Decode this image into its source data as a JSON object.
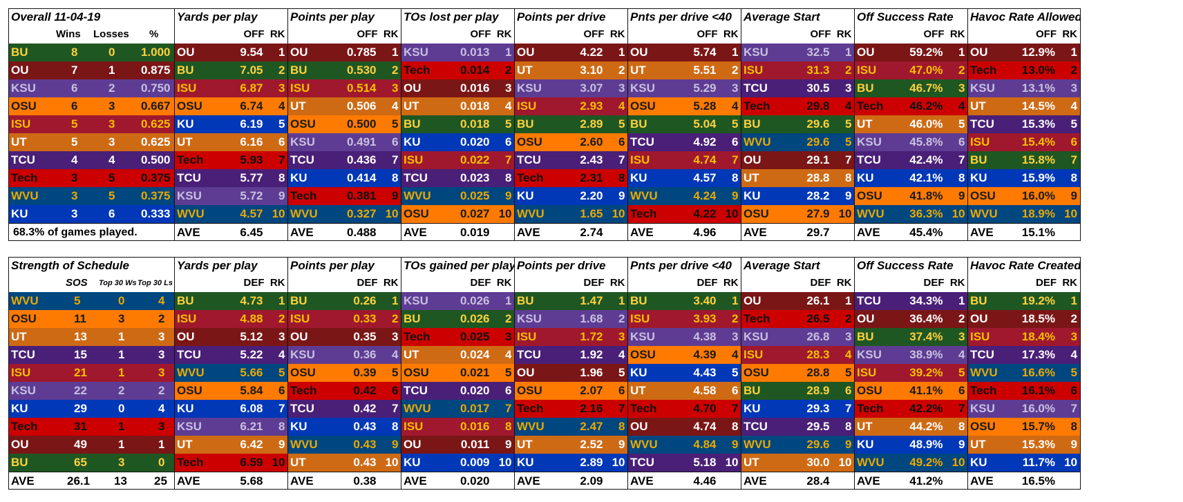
{
  "team_colors": {
    "BU": {
      "bg": "#1f5722",
      "fg": "#ffd23f"
    },
    "OU": {
      "bg": "#7b1616",
      "fg": "#ffffff"
    },
    "KSU": {
      "bg": "#5e3c93",
      "fg": "#c8c0e0"
    },
    "OSU": {
      "bg": "#ff7a00",
      "fg": "#1a1a1a"
    },
    "ISU": {
      "bg": "#a0182e",
      "fg": "#f5c000"
    },
    "UT": {
      "bg": "#cf6a14",
      "fg": "#ffffff"
    },
    "TCU": {
      "bg": "#4a1f78",
      "fg": "#ffffff"
    },
    "Tech": {
      "bg": "#cc0000",
      "fg": "#111111"
    },
    "WVU": {
      "bg": "#00467f",
      "fg": "#eaaa00"
    },
    "KU": {
      "bg": "#0038b8",
      "fg": "#ffffff"
    }
  },
  "top": {
    "standings": {
      "title": "Overall 11-04-19",
      "headers": [
        "Wins",
        "Losses",
        "%"
      ],
      "rows": [
        [
          "BU",
          "8",
          "0",
          "1.000"
        ],
        [
          "OU",
          "7",
          "1",
          "0.875"
        ],
        [
          "KSU",
          "6",
          "2",
          "0.750"
        ],
        [
          "OSU",
          "6",
          "3",
          "0.667"
        ],
        [
          "ISU",
          "5",
          "3",
          "0.625"
        ],
        [
          "UT",
          "5",
          "3",
          "0.625"
        ],
        [
          "TCU",
          "4",
          "4",
          "0.500"
        ],
        [
          "Tech",
          "3",
          "5",
          "0.375"
        ],
        [
          "WVU",
          "3",
          "5",
          "0.375"
        ],
        [
          "KU",
          "3",
          "6",
          "0.333"
        ]
      ],
      "footer_note": "68.3%  of games played."
    },
    "stats": [
      {
        "title": "Yards per play",
        "col": "OFF",
        "rk": "RK",
        "rows": [
          [
            "OU",
            "9.54",
            "1"
          ],
          [
            "BU",
            "7.05",
            "2"
          ],
          [
            "ISU",
            "6.87",
            "3"
          ],
          [
            "OSU",
            "6.74",
            "4"
          ],
          [
            "KU",
            "6.19",
            "5"
          ],
          [
            "UT",
            "6.16",
            "6"
          ],
          [
            "Tech",
            "5.93",
            "7"
          ],
          [
            "TCU",
            "5.77",
            "8"
          ],
          [
            "KSU",
            "5.72",
            "9"
          ],
          [
            "WVU",
            "4.57",
            "10"
          ]
        ],
        "ave": "6.45"
      },
      {
        "title": "Points per play",
        "col": "OFF",
        "rk": "RK",
        "rows": [
          [
            "OU",
            "0.785",
            "1"
          ],
          [
            "BU",
            "0.530",
            "2"
          ],
          [
            "ISU",
            "0.514",
            "3"
          ],
          [
            "UT",
            "0.506",
            "4"
          ],
          [
            "OSU",
            "0.500",
            "5"
          ],
          [
            "KSU",
            "0.491",
            "6"
          ],
          [
            "TCU",
            "0.436",
            "7"
          ],
          [
            "KU",
            "0.414",
            "8"
          ],
          [
            "Tech",
            "0.381",
            "9"
          ],
          [
            "WVU",
            "0.327",
            "10"
          ]
        ],
        "ave": "0.488"
      },
      {
        "title": "TOs lost per play",
        "col": "OFF",
        "rk": "RK",
        "rows": [
          [
            "KSU",
            "0.013",
            "1"
          ],
          [
            "Tech",
            "0.014",
            "2"
          ],
          [
            "OU",
            "0.016",
            "3"
          ],
          [
            "UT",
            "0.018",
            "4"
          ],
          [
            "BU",
            "0.018",
            "5"
          ],
          [
            "KU",
            "0.020",
            "6"
          ],
          [
            "ISU",
            "0.022",
            "7"
          ],
          [
            "TCU",
            "0.023",
            "8"
          ],
          [
            "WVU",
            "0.025",
            "9"
          ],
          [
            "OSU",
            "0.027",
            "10"
          ]
        ],
        "ave": "0.019"
      },
      {
        "title": "Points per drive",
        "col": "OFF",
        "rk": "RK",
        "rows": [
          [
            "OU",
            "4.22",
            "1"
          ],
          [
            "UT",
            "3.10",
            "2"
          ],
          [
            "KSU",
            "3.07",
            "3"
          ],
          [
            "ISU",
            "2.93",
            "4"
          ],
          [
            "BU",
            "2.89",
            "5"
          ],
          [
            "OSU",
            "2.60",
            "6"
          ],
          [
            "TCU",
            "2.43",
            "7"
          ],
          [
            "Tech",
            "2.31",
            "8"
          ],
          [
            "KU",
            "2.20",
            "9"
          ],
          [
            "WVU",
            "1.65",
            "10"
          ]
        ],
        "ave": "2.74"
      },
      {
        "title": "Pnts per drive <40",
        "col": "OFF",
        "rk": "RK",
        "rows": [
          [
            "OU",
            "5.74",
            "1"
          ],
          [
            "UT",
            "5.51",
            "2"
          ],
          [
            "KSU",
            "5.29",
            "3"
          ],
          [
            "OSU",
            "5.28",
            "4"
          ],
          [
            "BU",
            "5.04",
            "5"
          ],
          [
            "TCU",
            "4.92",
            "6"
          ],
          [
            "ISU",
            "4.74",
            "7"
          ],
          [
            "KU",
            "4.57",
            "8"
          ],
          [
            "WVU",
            "4.24",
            "9"
          ],
          [
            "Tech",
            "4.22",
            "10"
          ]
        ],
        "ave": "4.96"
      },
      {
        "title": "Average Start",
        "col": "OFF",
        "rk": "RK",
        "rows": [
          [
            "KSU",
            "32.5",
            "1"
          ],
          [
            "ISU",
            "31.3",
            "2"
          ],
          [
            "TCU",
            "30.5",
            "3"
          ],
          [
            "Tech",
            "29.8",
            "4"
          ],
          [
            "BU",
            "29.6",
            "5"
          ],
          [
            "WVU",
            "29.6",
            "5"
          ],
          [
            "OU",
            "29.1",
            "7"
          ],
          [
            "UT",
            "28.8",
            "8"
          ],
          [
            "KU",
            "28.2",
            "9"
          ],
          [
            "OSU",
            "27.9",
            "10"
          ]
        ],
        "ave": "29.7"
      },
      {
        "title": "Off Success Rate",
        "col": "OFF",
        "rk": "RK",
        "rows": [
          [
            "OU",
            "59.2%",
            "1"
          ],
          [
            "ISU",
            "47.0%",
            "2"
          ],
          [
            "BU",
            "46.7%",
            "3"
          ],
          [
            "Tech",
            "46.2%",
            "4"
          ],
          [
            "UT",
            "46.0%",
            "5"
          ],
          [
            "KSU",
            "45.8%",
            "6"
          ],
          [
            "TCU",
            "42.4%",
            "7"
          ],
          [
            "KU",
            "42.1%",
            "8"
          ],
          [
            "OSU",
            "41.8%",
            "9"
          ],
          [
            "WVU",
            "36.3%",
            "10"
          ]
        ],
        "ave": "45.4%"
      },
      {
        "title": "Havoc Rate Allowed",
        "col": "OFF",
        "rk": "RK",
        "rows": [
          [
            "OU",
            "12.9%",
            "1"
          ],
          [
            "Tech",
            "13.0%",
            "2"
          ],
          [
            "KSU",
            "13.1%",
            "3"
          ],
          [
            "UT",
            "14.5%",
            "4"
          ],
          [
            "TCU",
            "15.3%",
            "5"
          ],
          [
            "ISU",
            "15.4%",
            "6"
          ],
          [
            "BU",
            "15.8%",
            "7"
          ],
          [
            "KU",
            "15.9%",
            "8"
          ],
          [
            "OSU",
            "16.0%",
            "9"
          ],
          [
            "WVU",
            "18.9%",
            "10"
          ]
        ],
        "ave": "15.1%"
      }
    ]
  },
  "bottom": {
    "sos": {
      "title": "Strength of Schedule",
      "headers": [
        "SOS",
        "Top 30 Ws",
        "Top 30 Ls"
      ],
      "rows": [
        [
          "WVU",
          "5",
          "0",
          "4"
        ],
        [
          "OSU",
          "11",
          "3",
          "2"
        ],
        [
          "UT",
          "13",
          "1",
          "3"
        ],
        [
          "TCU",
          "15",
          "1",
          "3"
        ],
        [
          "ISU",
          "21",
          "1",
          "3"
        ],
        [
          "KSU",
          "22",
          "2",
          "2"
        ],
        [
          "KU",
          "29",
          "0",
          "4"
        ],
        [
          "Tech",
          "31",
          "1",
          "3"
        ],
        [
          "OU",
          "49",
          "1",
          "1"
        ],
        [
          "BU",
          "65",
          "3",
          "0"
        ]
      ],
      "footer": [
        "AVE",
        "26.1",
        "13",
        "25"
      ]
    },
    "stats": [
      {
        "title": "Yards per play",
        "col": "DEF",
        "rk": "RK",
        "rows": [
          [
            "BU",
            "4.73",
            "1"
          ],
          [
            "ISU",
            "4.88",
            "2"
          ],
          [
            "OU",
            "5.12",
            "3"
          ],
          [
            "TCU",
            "5.22",
            "4"
          ],
          [
            "WVU",
            "5.66",
            "5"
          ],
          [
            "OSU",
            "5.84",
            "6"
          ],
          [
            "KU",
            "6.08",
            "7"
          ],
          [
            "KSU",
            "6.21",
            "8"
          ],
          [
            "UT",
            "6.42",
            "9"
          ],
          [
            "Tech",
            "6.59",
            "10"
          ]
        ],
        "ave": "5.68"
      },
      {
        "title": "Points per play",
        "col": "DEF",
        "rk": "RK",
        "rows": [
          [
            "BU",
            "0.26",
            "1"
          ],
          [
            "ISU",
            "0.33",
            "2"
          ],
          [
            "OU",
            "0.35",
            "3"
          ],
          [
            "KSU",
            "0.36",
            "4"
          ],
          [
            "OSU",
            "0.39",
            "5"
          ],
          [
            "Tech",
            "0.42",
            "6"
          ],
          [
            "TCU",
            "0.42",
            "7"
          ],
          [
            "KU",
            "0.43",
            "8"
          ],
          [
            "WVU",
            "0.43",
            "9"
          ],
          [
            "UT",
            "0.43",
            "10"
          ]
        ],
        "ave": "0.38"
      },
      {
        "title": "TOs gained per play",
        "col": "DEF",
        "rk": "RK",
        "rows": [
          [
            "KSU",
            "0.026",
            "1"
          ],
          [
            "BU",
            "0.026",
            "2"
          ],
          [
            "Tech",
            "0.025",
            "3"
          ],
          [
            "UT",
            "0.024",
            "4"
          ],
          [
            "OSU",
            "0.021",
            "5"
          ],
          [
            "TCU",
            "0.020",
            "6"
          ],
          [
            "WVU",
            "0.017",
            "7"
          ],
          [
            "ISU",
            "0.016",
            "8"
          ],
          [
            "OU",
            "0.011",
            "9"
          ],
          [
            "KU",
            "0.009",
            "10"
          ]
        ],
        "ave": "0.020"
      },
      {
        "title": "Points per drive",
        "col": "DEF",
        "rk": "RK",
        "rows": [
          [
            "BU",
            "1.47",
            "1"
          ],
          [
            "KSU",
            "1.68",
            "2"
          ],
          [
            "ISU",
            "1.72",
            "3"
          ],
          [
            "TCU",
            "1.92",
            "4"
          ],
          [
            "OU",
            "1.96",
            "5"
          ],
          [
            "OSU",
            "2.07",
            "6"
          ],
          [
            "Tech",
            "2.16",
            "7"
          ],
          [
            "WVU",
            "2.47",
            "8"
          ],
          [
            "UT",
            "2.52",
            "9"
          ],
          [
            "KU",
            "2.89",
            "10"
          ]
        ],
        "ave": "2.09"
      },
      {
        "title": "Pnts per drive <40",
        "col": "DEF",
        "rk": "RK",
        "rows": [
          [
            "BU",
            "3.40",
            "1"
          ],
          [
            "ISU",
            "3.93",
            "2"
          ],
          [
            "KSU",
            "4.38",
            "3"
          ],
          [
            "OSU",
            "4.39",
            "4"
          ],
          [
            "KU",
            "4.43",
            "5"
          ],
          [
            "UT",
            "4.58",
            "6"
          ],
          [
            "Tech",
            "4.70",
            "7"
          ],
          [
            "OU",
            "4.74",
            "8"
          ],
          [
            "WVU",
            "4.84",
            "9"
          ],
          [
            "TCU",
            "5.18",
            "10"
          ]
        ],
        "ave": "4.46"
      },
      {
        "title": "Average Start",
        "col": "DEF",
        "rk": "RK",
        "rows": [
          [
            "OU",
            "26.1",
            "1"
          ],
          [
            "Tech",
            "26.5",
            "2"
          ],
          [
            "KSU",
            "26.8",
            "3"
          ],
          [
            "ISU",
            "28.3",
            "4"
          ],
          [
            "OSU",
            "28.8",
            "5"
          ],
          [
            "BU",
            "28.9",
            "6"
          ],
          [
            "KU",
            "29.3",
            "7"
          ],
          [
            "TCU",
            "29.5",
            "8"
          ],
          [
            "WVU",
            "29.6",
            "9"
          ],
          [
            "UT",
            "30.0",
            "10"
          ]
        ],
        "ave": "28.4"
      },
      {
        "title": "Off Success Rate",
        "col": "DEF",
        "rk": "RK",
        "rows": [
          [
            "TCU",
            "34.3%",
            "1"
          ],
          [
            "OU",
            "36.4%",
            "2"
          ],
          [
            "BU",
            "37.4%",
            "3"
          ],
          [
            "KSU",
            "38.9%",
            "4"
          ],
          [
            "ISU",
            "39.2%",
            "5"
          ],
          [
            "OSU",
            "41.1%",
            "6"
          ],
          [
            "Tech",
            "42.2%",
            "7"
          ],
          [
            "UT",
            "44.2%",
            "8"
          ],
          [
            "KU",
            "48.9%",
            "9"
          ],
          [
            "WVU",
            "49.2%",
            "10"
          ]
        ],
        "ave": "41.2%"
      },
      {
        "title": "Havoc Rate Created",
        "col": "DEF",
        "rk": "RK",
        "rows": [
          [
            "BU",
            "19.2%",
            "1"
          ],
          [
            "OU",
            "18.5%",
            "2"
          ],
          [
            "ISU",
            "18.4%",
            "3"
          ],
          [
            "TCU",
            "17.3%",
            "4"
          ],
          [
            "WVU",
            "16.6%",
            "5"
          ],
          [
            "Tech",
            "16.1%",
            "6"
          ],
          [
            "KSU",
            "16.0%",
            "7"
          ],
          [
            "OSU",
            "15.7%",
            "8"
          ],
          [
            "UT",
            "15.3%",
            "9"
          ],
          [
            "KU",
            "11.7%",
            "10"
          ]
        ],
        "ave": "16.5%"
      }
    ],
    "ave_label": "AVE"
  }
}
